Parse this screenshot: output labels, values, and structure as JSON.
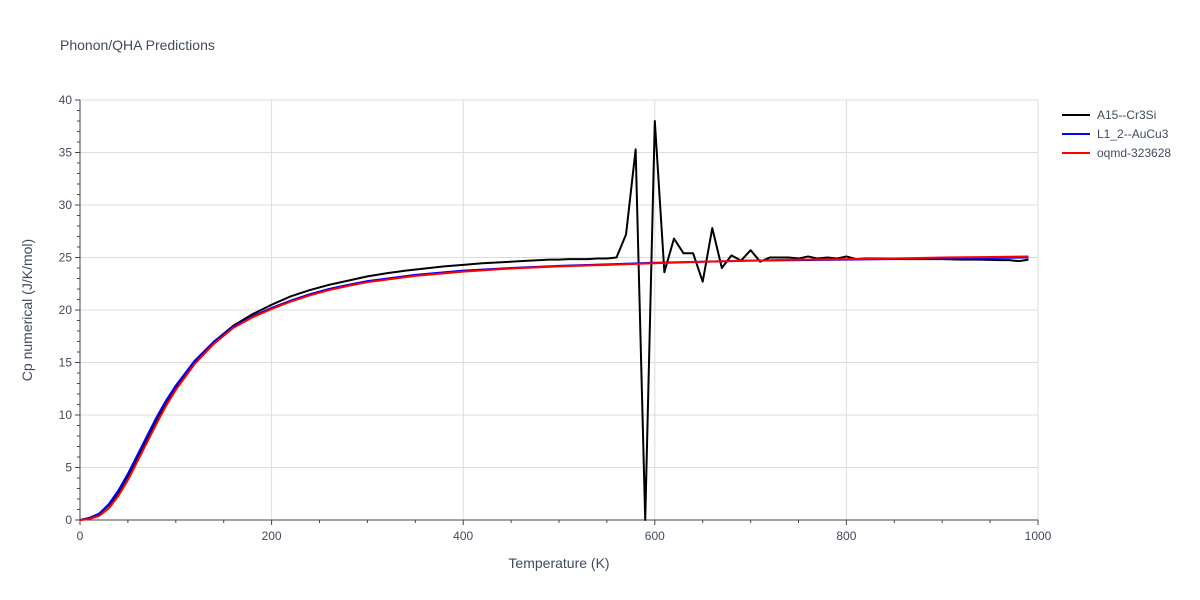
{
  "chart_data": {
    "type": "line",
    "title": "Phonon/QHA Predictions",
    "xlabel": "Temperature (K)",
    "ylabel": "Cp numerical (J/K/mol)",
    "xlim": [
      0,
      1000
    ],
    "ylim": [
      0,
      40
    ],
    "xticks": [
      0,
      200,
      400,
      600,
      800,
      1000
    ],
    "yticks": [
      0,
      5,
      10,
      15,
      20,
      25,
      30,
      35,
      40
    ],
    "grid": true,
    "legend_position": "top-right",
    "series": [
      {
        "name": "A15--Cr3Si",
        "color": "#000000",
        "x": [
          0,
          10,
          20,
          30,
          40,
          50,
          60,
          70,
          80,
          90,
          100,
          120,
          140,
          160,
          180,
          200,
          220,
          240,
          260,
          280,
          300,
          320,
          340,
          360,
          380,
          400,
          420,
          440,
          460,
          470,
          480,
          490,
          500,
          510,
          520,
          530,
          540,
          550,
          560,
          570,
          580,
          590,
          600,
          610,
          620,
          630,
          640,
          650,
          660,
          670,
          680,
          690,
          700,
          710,
          720,
          730,
          740,
          750,
          760,
          770,
          780,
          790,
          800,
          810,
          820,
          840,
          860,
          880,
          900,
          920,
          940,
          960,
          970,
          980,
          990
        ],
        "y": [
          0,
          0.2,
          0.6,
          1.4,
          2.6,
          4.2,
          5.9,
          7.7,
          9.5,
          11.1,
          12.6,
          15.1,
          17.0,
          18.5,
          19.6,
          20.5,
          21.3,
          21.9,
          22.4,
          22.8,
          23.2,
          23.5,
          23.75,
          23.95,
          24.15,
          24.3,
          24.45,
          24.55,
          24.65,
          24.7,
          24.75,
          24.8,
          24.8,
          24.85,
          24.85,
          24.85,
          24.9,
          24.9,
          25.0,
          27.2,
          35.3,
          0.0,
          38.0,
          23.6,
          26.8,
          25.4,
          25.4,
          22.7,
          27.8,
          24.0,
          25.2,
          24.7,
          25.7,
          24.6,
          25.0,
          25.0,
          25.0,
          24.9,
          25.1,
          24.9,
          25.0,
          24.9,
          25.1,
          24.85,
          24.9,
          24.9,
          24.85,
          24.85,
          24.85,
          24.8,
          24.8,
          24.75,
          24.75,
          24.65,
          24.8
        ]
      },
      {
        "name": "L1_2--AuCu3",
        "color": "#0000ff",
        "x": [
          0,
          10,
          20,
          30,
          40,
          50,
          60,
          70,
          80,
          90,
          100,
          120,
          140,
          160,
          180,
          200,
          220,
          240,
          260,
          280,
          300,
          350,
          400,
          450,
          500,
          550,
          600,
          650,
          700,
          750,
          800,
          850,
          900,
          950,
          990
        ],
        "y": [
          0,
          0.15,
          0.6,
          1.5,
          2.8,
          4.4,
          6.2,
          8.0,
          9.8,
          11.4,
          12.8,
          15.2,
          17.0,
          18.4,
          19.4,
          20.2,
          20.9,
          21.5,
          22.0,
          22.4,
          22.75,
          23.35,
          23.75,
          24.0,
          24.2,
          24.35,
          24.5,
          24.6,
          24.7,
          24.75,
          24.8,
          24.85,
          24.9,
          24.95,
          25.0
        ]
      },
      {
        "name": "oqmd-323628",
        "color": "#ff0000",
        "x": [
          0,
          10,
          20,
          30,
          40,
          50,
          60,
          70,
          80,
          90,
          100,
          120,
          140,
          160,
          180,
          200,
          220,
          240,
          260,
          280,
          300,
          350,
          400,
          450,
          500,
          550,
          600,
          650,
          700,
          750,
          800,
          850,
          900,
          950,
          990
        ],
        "y": [
          0,
          0.1,
          0.4,
          1.1,
          2.3,
          3.8,
          5.6,
          7.4,
          9.2,
          10.9,
          12.4,
          14.9,
          16.8,
          18.3,
          19.3,
          20.1,
          20.8,
          21.4,
          21.9,
          22.3,
          22.65,
          23.25,
          23.65,
          23.95,
          24.15,
          24.3,
          24.45,
          24.6,
          24.7,
          24.8,
          24.85,
          24.9,
          25.0,
          25.05,
          25.1
        ]
      }
    ]
  }
}
